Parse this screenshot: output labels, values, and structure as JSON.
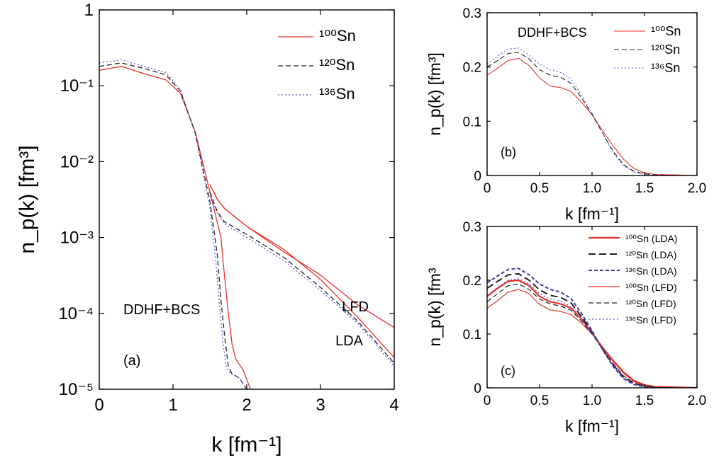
{
  "chart_data": [
    {
      "panel": "(a)",
      "type": "line",
      "xlabel": "k [fm⁻¹]",
      "ylabel": "n_p(k) [fm³]",
      "xlim": [
        0,
        4
      ],
      "ylim": [
        1e-05,
        1
      ],
      "yscale": "log",
      "xticks": [
        "0",
        "1",
        "2",
        "3",
        "4"
      ],
      "yticks": [
        "10⁻⁵",
        "10⁻⁴",
        "10⁻³",
        "10⁻²",
        "10⁻¹",
        "1"
      ],
      "annotations": [
        "DDHF+BCS",
        "LFD",
        "LDA",
        "(a)"
      ],
      "legend_position": "top-right",
      "series": [
        {
          "name": "¹⁰⁰Sn",
          "color": "#e8302a",
          "dash": "solid",
          "curve": "DDHF+BCS",
          "x": [
            0,
            0.3,
            0.6,
            0.9,
            1.1,
            1.3,
            1.5,
            1.65,
            1.7,
            1.75,
            1.8,
            1.85,
            1.95,
            2.05
          ],
          "y": [
            0.16,
            0.18,
            0.145,
            0.12,
            0.08,
            0.025,
            0.004,
            0.001,
            0.0003,
            0.0001,
            4e-05,
            2.5e-05,
            1.8e-05,
            1e-05
          ]
        },
        {
          "name": "¹²⁰Sn",
          "color": "#222222",
          "dash": "dashed",
          "curve": "DDHF+BCS",
          "x": [
            0,
            0.3,
            0.6,
            0.9,
            1.1,
            1.3,
            1.5,
            1.6,
            1.65,
            1.7,
            1.75,
            1.8,
            1.9,
            2.0
          ],
          "y": [
            0.18,
            0.2,
            0.17,
            0.14,
            0.085,
            0.024,
            0.003,
            0.0006,
            0.00015,
            5e-05,
            2e-05,
            1.6e-05,
            1.4e-05,
            1e-05
          ]
        },
        {
          "name": "¹³⁶Sn",
          "color": "#5a5ad0",
          "dash": "dotted",
          "curve": "DDHF+BCS",
          "x": [
            0,
            0.3,
            0.6,
            0.9,
            1.1,
            1.3,
            1.5,
            1.58,
            1.63,
            1.68,
            1.72,
            1.78,
            1.9,
            2.0
          ],
          "y": [
            0.2,
            0.22,
            0.18,
            0.15,
            0.09,
            0.024,
            0.0025,
            0.0005,
            0.00013,
            4e-05,
            2e-05,
            1.6e-05,
            1.4e-05,
            1e-05
          ]
        },
        {
          "name": "¹⁰⁰Sn",
          "color": "#e8302a",
          "dash": "solid",
          "curve": "LFD",
          "x": [
            1.5,
            1.6,
            1.7,
            2.0,
            2.5,
            3.0,
            3.5,
            4.0
          ],
          "y": [
            0.005,
            0.0032,
            0.0024,
            0.0014,
            0.00065,
            0.00032,
            0.00013,
            6.5e-05
          ]
        },
        {
          "name": "¹⁰⁰Sn",
          "color": "#e8302a",
          "dash": "solid",
          "curve": "LDA",
          "x": [
            1.5,
            1.6,
            1.7,
            2.0,
            2.5,
            3.0,
            3.5,
            4.0
          ],
          "y": [
            0.005,
            0.0032,
            0.0024,
            0.0014,
            0.0007,
            0.00028,
            9e-05,
            2.6e-05
          ]
        },
        {
          "name": "¹²⁰Sn",
          "color": "#222222",
          "dash": "dashed",
          "curve": "LDA",
          "x": [
            1.5,
            1.6,
            1.7,
            2.0,
            2.5,
            3.0,
            3.5,
            4.0
          ],
          "y": [
            0.004,
            0.0022,
            0.0016,
            0.0011,
            0.00055,
            0.00022,
            8e-05,
            2.2e-05
          ]
        },
        {
          "name": "¹³⁶Sn",
          "color": "#5a5ad0",
          "dash": "dotted",
          "curve": "LDA",
          "x": [
            1.5,
            1.6,
            1.7,
            2.0,
            2.5,
            3.0,
            3.5,
            4.0
          ],
          "y": [
            0.0035,
            0.0021,
            0.0015,
            0.001,
            0.0005,
            0.0002,
            7.5e-05,
            2e-05
          ]
        }
      ]
    },
    {
      "panel": "(b)",
      "type": "line",
      "xlabel": "k [fm⁻¹]",
      "ylabel": "n_p(k) [fm³]",
      "xlim": [
        0,
        2.0
      ],
      "ylim": [
        0,
        0.3
      ],
      "xticks": [
        "0",
        "0.5",
        "1.0",
        "1.5",
        "2.0"
      ],
      "yticks": [
        "0",
        "0.1",
        "0.2",
        "0.3"
      ],
      "annotations": [
        "DDHF+BCS",
        "(b)"
      ],
      "legend_position": "top-right",
      "series": [
        {
          "name": "¹⁰⁰Sn",
          "color": "#e8302a",
          "dash": "solid",
          "x": [
            0,
            0.1,
            0.2,
            0.3,
            0.4,
            0.5,
            0.6,
            0.7,
            0.8,
            0.9,
            1.0,
            1.1,
            1.2,
            1.3,
            1.4,
            1.5,
            1.6,
            1.8,
            2.0
          ],
          "y": [
            0.185,
            0.198,
            0.212,
            0.216,
            0.203,
            0.18,
            0.165,
            0.162,
            0.155,
            0.135,
            0.112,
            0.083,
            0.055,
            0.03,
            0.013,
            0.005,
            0.002,
            0.001,
            0.0
          ]
        },
        {
          "name": "¹²⁰Sn",
          "color": "#222222",
          "dash": "dashed",
          "x": [
            0,
            0.1,
            0.2,
            0.3,
            0.4,
            0.5,
            0.6,
            0.7,
            0.8,
            0.9,
            1.0,
            1.1,
            1.2,
            1.3,
            1.4,
            1.5,
            1.6,
            1.8,
            2.0
          ],
          "y": [
            0.2,
            0.212,
            0.225,
            0.227,
            0.215,
            0.195,
            0.185,
            0.181,
            0.17,
            0.143,
            0.113,
            0.078,
            0.045,
            0.02,
            0.008,
            0.003,
            0.001,
            0.0,
            0.0
          ]
        },
        {
          "name": "¹³⁶Sn",
          "color": "#5a5ad0",
          "dash": "dotted",
          "x": [
            0,
            0.1,
            0.2,
            0.3,
            0.4,
            0.5,
            0.6,
            0.7,
            0.8,
            0.9,
            1.0,
            1.1,
            1.2,
            1.3,
            1.4,
            1.5,
            1.6,
            1.8,
            2.0
          ],
          "y": [
            0.205,
            0.22,
            0.233,
            0.235,
            0.222,
            0.205,
            0.195,
            0.19,
            0.178,
            0.148,
            0.115,
            0.078,
            0.042,
            0.018,
            0.006,
            0.002,
            0.0,
            0.0,
            0.0
          ]
        }
      ]
    },
    {
      "panel": "(c)",
      "type": "line",
      "xlabel": "k [fm⁻¹]",
      "ylabel": "n_p(k) [fm³",
      "xlim": [
        0,
        2.0
      ],
      "ylim": [
        0,
        0.3
      ],
      "xticks": [
        "0",
        "0.5",
        "1.0",
        "1.5",
        "2.0"
      ],
      "yticks": [
        "0",
        "0.1",
        "0.2",
        "0.3"
      ],
      "annotations": [
        "(c)"
      ],
      "legend_position": "top-right",
      "series": [
        {
          "name": "¹⁰⁰Sn (LDA)",
          "color": "#e8302a",
          "dash": "solid",
          "width": 2.2,
          "x": [
            0,
            0.1,
            0.2,
            0.3,
            0.4,
            0.5,
            0.6,
            0.7,
            0.8,
            0.9,
            1.0,
            1.1,
            1.2,
            1.3,
            1.4,
            1.5,
            1.6,
            1.8,
            2.0
          ],
          "y": [
            0.17,
            0.185,
            0.198,
            0.2,
            0.19,
            0.17,
            0.16,
            0.156,
            0.148,
            0.128,
            0.102,
            0.075,
            0.05,
            0.028,
            0.012,
            0.005,
            0.002,
            0.001,
            0.0
          ]
        },
        {
          "name": "¹²⁰Sn (LDA)",
          "color": "#222222",
          "dash": "longdash",
          "width": 2.0,
          "x": [
            0,
            0.1,
            0.2,
            0.3,
            0.4,
            0.5,
            0.6,
            0.7,
            0.8,
            0.9,
            1.0,
            1.1,
            1.2,
            1.3,
            1.4,
            1.5,
            1.6,
            1.8,
            2.0
          ],
          "y": [
            0.185,
            0.198,
            0.21,
            0.212,
            0.2,
            0.182,
            0.172,
            0.168,
            0.158,
            0.132,
            0.104,
            0.072,
            0.043,
            0.02,
            0.008,
            0.003,
            0.001,
            0.0,
            0.0
          ]
        },
        {
          "name": "¹³⁶Sn (LDA)",
          "color": "#3a3aa0",
          "dash": "shortdash",
          "width": 2.0,
          "x": [
            0,
            0.1,
            0.2,
            0.3,
            0.4,
            0.5,
            0.6,
            0.7,
            0.8,
            0.9,
            1.0,
            1.1,
            1.2,
            1.3,
            1.4,
            1.5,
            1.6,
            1.8,
            2.0
          ],
          "y": [
            0.195,
            0.208,
            0.22,
            0.222,
            0.21,
            0.193,
            0.183,
            0.178,
            0.166,
            0.138,
            0.106,
            0.071,
            0.04,
            0.017,
            0.006,
            0.002,
            0.0,
            0.0,
            0.0
          ]
        },
        {
          "name": "¹⁰⁰Sn (LFD)",
          "color": "#e8302a",
          "dash": "solid",
          "width": 1.2,
          "x": [
            0,
            0.1,
            0.2,
            0.3,
            0.4,
            0.5,
            0.6,
            0.7,
            0.8,
            0.9,
            1.0,
            1.1,
            1.2,
            1.3,
            1.4,
            1.5,
            1.6,
            1.8,
            2.0
          ],
          "y": [
            0.148,
            0.162,
            0.178,
            0.183,
            0.175,
            0.155,
            0.145,
            0.142,
            0.136,
            0.12,
            0.1,
            0.076,
            0.052,
            0.03,
            0.014,
            0.006,
            0.002,
            0.001,
            0.0
          ]
        },
        {
          "name": "¹²⁰Sn (LFD)",
          "color": "#222222",
          "dash": "dashed",
          "width": 1.2,
          "x": [
            0,
            0.1,
            0.2,
            0.3,
            0.4,
            0.5,
            0.6,
            0.7,
            0.8,
            0.9,
            1.0,
            1.1,
            1.2,
            1.3,
            1.4,
            1.5,
            1.6,
            1.8,
            2.0
          ],
          "y": [
            0.16,
            0.175,
            0.19,
            0.193,
            0.183,
            0.165,
            0.156,
            0.152,
            0.144,
            0.124,
            0.1,
            0.072,
            0.045,
            0.022,
            0.009,
            0.003,
            0.001,
            0.0,
            0.0
          ]
        },
        {
          "name": "¹³⁶Sn (LFD)",
          "color": "#5a5ad0",
          "dash": "dotted",
          "width": 1.2,
          "x": [
            0,
            0.1,
            0.2,
            0.3,
            0.4,
            0.5,
            0.6,
            0.7,
            0.8,
            0.9,
            1.0,
            1.1,
            1.2,
            1.3,
            1.4,
            1.5,
            1.6,
            1.8,
            2.0
          ],
          "y": [
            0.172,
            0.187,
            0.2,
            0.203,
            0.193,
            0.175,
            0.165,
            0.161,
            0.151,
            0.128,
            0.102,
            0.071,
            0.042,
            0.019,
            0.007,
            0.002,
            0.0,
            0.0,
            0.0
          ]
        }
      ]
    }
  ]
}
